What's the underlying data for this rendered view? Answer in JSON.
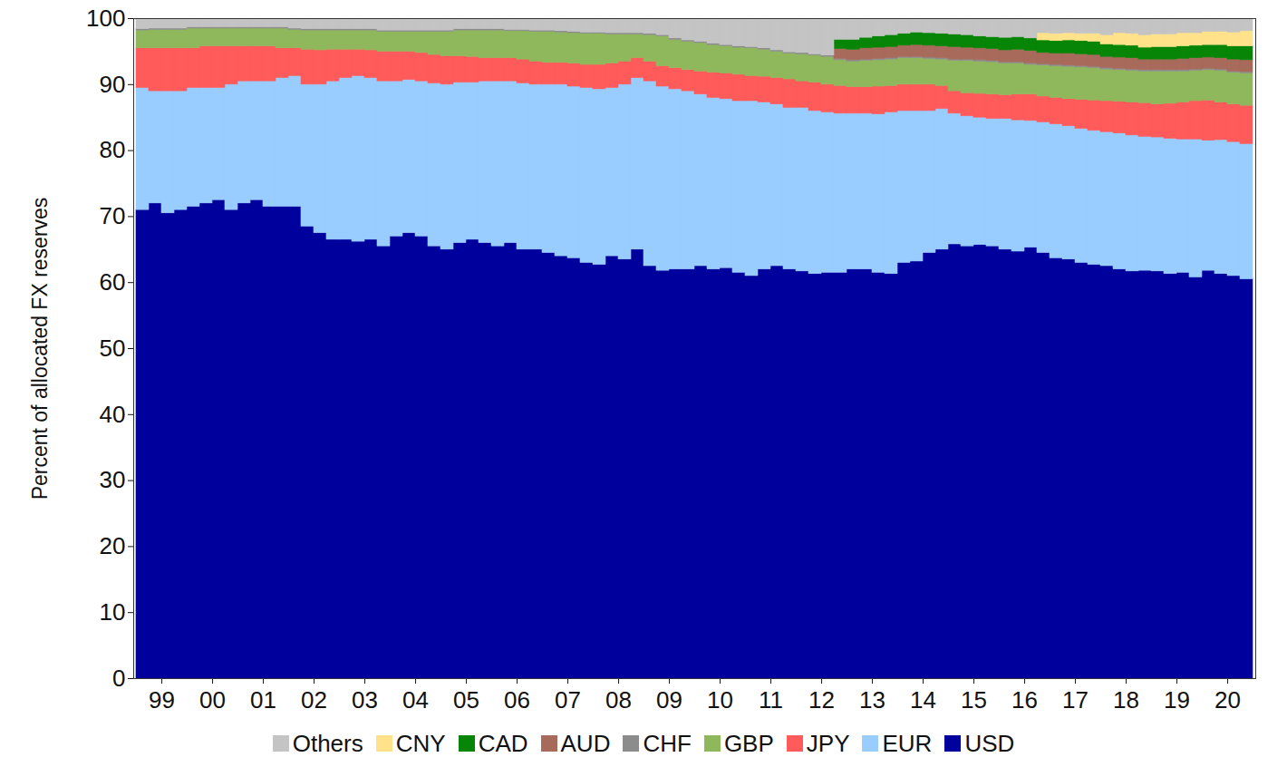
{
  "chart_data": {
    "type": "bar",
    "stacked": true,
    "ylabel": "Percent of allocated FX reserves",
    "ylim": [
      0,
      100
    ],
    "yticks": [
      0,
      10,
      20,
      30,
      40,
      50,
      60,
      70,
      80,
      90,
      100
    ],
    "grid": false,
    "legend": "bottom",
    "categories": [
      null,
      "99",
      null,
      null,
      null,
      "00",
      null,
      null,
      null,
      "01",
      null,
      null,
      null,
      "02",
      null,
      null,
      null,
      "03",
      null,
      null,
      null,
      "04",
      null,
      null,
      null,
      "05",
      null,
      null,
      null,
      "06",
      null,
      null,
      null,
      "07",
      null,
      null,
      null,
      "08",
      null,
      null,
      null,
      "09",
      null,
      null,
      null,
      "10",
      null,
      null,
      null,
      "11",
      null,
      null,
      null,
      "12",
      null,
      null,
      null,
      "13",
      null,
      null,
      null,
      "14",
      null,
      null,
      null,
      "15",
      null,
      null,
      null,
      "16",
      null,
      null,
      null,
      "17",
      null,
      null,
      null,
      "18",
      null,
      null,
      null,
      "19",
      null,
      null,
      null,
      "20",
      null,
      null
    ],
    "series": [
      {
        "name": "USD",
        "color": "#00009c",
        "values": [
          71,
          72,
          70.5,
          71,
          71.5,
          72,
          72.5,
          71,
          72,
          72.5,
          71.5,
          71.5,
          71.5,
          68.5,
          67.5,
          66.5,
          66.5,
          66.2,
          66.5,
          65.5,
          67,
          67.5,
          67,
          65.5,
          65,
          66,
          66.5,
          66,
          65.5,
          66,
          65,
          65,
          64.5,
          64,
          63.7,
          63,
          62.7,
          64,
          63.5,
          65,
          62.5,
          61.8,
          62,
          62,
          62.5,
          62,
          62.2,
          61.5,
          61,
          62,
          62.5,
          62,
          61.7,
          61.3,
          61.5,
          61.5,
          62,
          62,
          61.5,
          61.3,
          63,
          63.2,
          64.5,
          65,
          65.8,
          65.5,
          65.7,
          65.5,
          65,
          64.7,
          65.3,
          64.5,
          63.7,
          63.5,
          63,
          62.7,
          62.5,
          62,
          61.7,
          61.8,
          61.7,
          61.3,
          61.5,
          60.8,
          61.8,
          61.3,
          61,
          60.5
        ]
      },
      {
        "name": "EUR",
        "color": "#99ccff",
        "values": [
          18.5,
          17,
          18.5,
          18,
          18,
          17.5,
          17,
          19,
          18.5,
          18,
          19,
          19.5,
          19.8,
          21.5,
          22.5,
          24,
          24.5,
          25.1,
          24.5,
          25,
          23.5,
          23.2,
          23.5,
          24.7,
          25,
          24.3,
          23.8,
          24.5,
          25,
          24.5,
          25.2,
          25,
          25.5,
          26,
          26,
          26.5,
          26.6,
          25.5,
          26.5,
          26,
          28,
          27.9,
          27.3,
          27,
          26,
          26,
          25.6,
          26,
          26.5,
          25.3,
          24.5,
          24.5,
          24.8,
          24.7,
          24.3,
          24.1,
          23.6,
          23.6,
          24,
          24.5,
          23,
          22.8,
          21.5,
          21.3,
          19.8,
          19.7,
          19.3,
          19.3,
          19.8,
          19.9,
          19.2,
          19.8,
          20.3,
          20.2,
          20.3,
          20.3,
          20.3,
          20.6,
          20.6,
          20.3,
          20.3,
          20.5,
          20.2,
          20.9,
          19.7,
          20.3,
          20.3,
          20.5
        ]
      },
      {
        "name": "JPY",
        "color": "#ff5b5b",
        "values": [
          6,
          6.5,
          6.5,
          6.5,
          6,
          6.3,
          6.3,
          5.8,
          5.3,
          5.3,
          5.3,
          4.5,
          4.2,
          5.3,
          5.2,
          4.8,
          4.3,
          4,
          4.2,
          4.5,
          4.5,
          4.3,
          4.3,
          4.3,
          4.3,
          4,
          3.9,
          3.5,
          3.5,
          3.5,
          3.6,
          3.5,
          3.3,
          3.3,
          3.5,
          3.5,
          3.7,
          3.7,
          3.5,
          3,
          3,
          3.1,
          3.2,
          3.2,
          3.5,
          3.8,
          3.9,
          4,
          3.8,
          3.9,
          4,
          4.3,
          4,
          4.3,
          4.2,
          4.2,
          4,
          4,
          4.2,
          4,
          4,
          4,
          4,
          3.5,
          3.4,
          3.5,
          3.6,
          3.7,
          3.6,
          3.9,
          4,
          3.9,
          4,
          4.1,
          4.4,
          4.6,
          4.7,
          4.8,
          5,
          5.1,
          5,
          5.3,
          5.6,
          5.8,
          6.1,
          5.7,
          5.7,
          5.8
        ]
      },
      {
        "name": "GBP",
        "color": "#8fb85c",
        "values": [
          2.7,
          2.8,
          2.8,
          2.8,
          3,
          2.7,
          2.7,
          2.7,
          2.7,
          2.7,
          2.7,
          3,
          2.8,
          2.9,
          3,
          2.9,
          2.9,
          2.9,
          3,
          3,
          3,
          3,
          3.2,
          3.5,
          3.7,
          3.9,
          4,
          4.2,
          4.2,
          4.1,
          4.3,
          4.5,
          4.7,
          4.6,
          4.6,
          4.7,
          4.7,
          4.4,
          4.1,
          3.6,
          4,
          4.5,
          4.3,
          4.3,
          4.3,
          4.2,
          4.1,
          4.1,
          4.2,
          4.1,
          4,
          3.9,
          4.1,
          4.1,
          4.2,
          3.9,
          3.9,
          4,
          4,
          4,
          4,
          4,
          3.9,
          4,
          4.6,
          4.9,
          4.9,
          4.9,
          4.8,
          4.7,
          4.5,
          4.7,
          4.8,
          4.9,
          4.9,
          4.9,
          4.8,
          4.8,
          4.8,
          4.8,
          5,
          4.9,
          4.7,
          4.6,
          4.6,
          4.8,
          4.8,
          4.9
        ]
      },
      {
        "name": "CHF",
        "color": "#8c8c8c",
        "values": [
          0.2,
          0.2,
          0.2,
          0.2,
          0.2,
          0.2,
          0.2,
          0.2,
          0.2,
          0.2,
          0.2,
          0.2,
          0.2,
          0.2,
          0.2,
          0.2,
          0.2,
          0.2,
          0.2,
          0.2,
          0.2,
          0.2,
          0.2,
          0.2,
          0.2,
          0.2,
          0.2,
          0.2,
          0.2,
          0.2,
          0.2,
          0.2,
          0.2,
          0.2,
          0.2,
          0.2,
          0.2,
          0.2,
          0.2,
          0.2,
          0.2,
          0.2,
          0.2,
          0.2,
          0.2,
          0.2,
          0.2,
          0.2,
          0.2,
          0.2,
          0.2,
          0.2,
          0.2,
          0.2,
          0.2,
          0.2,
          0.2,
          0.2,
          0.2,
          0.2,
          0.2,
          0.2,
          0.2,
          0.2,
          0.2,
          0.2,
          0.2,
          0.2,
          0.2,
          0.2,
          0.2,
          0.2,
          0.2,
          0.2,
          0.2,
          0.2,
          0.2,
          0.2,
          0.2,
          0.2,
          0.2,
          0.2,
          0.2,
          0.2,
          0.2,
          0.2,
          0.2,
          0.2
        ]
      },
      {
        "name": "AUD",
        "color": "#a86a5a",
        "values": [
          null,
          null,
          null,
          null,
          null,
          null,
          null,
          null,
          null,
          null,
          null,
          null,
          null,
          null,
          null,
          null,
          null,
          null,
          null,
          null,
          null,
          null,
          null,
          null,
          null,
          null,
          null,
          null,
          null,
          null,
          null,
          null,
          null,
          null,
          null,
          null,
          null,
          null,
          null,
          null,
          null,
          null,
          null,
          null,
          null,
          null,
          null,
          null,
          null,
          null,
          null,
          null,
          null,
          null,
          null,
          1.5,
          1.6,
          1.7,
          1.7,
          1.7,
          1.7,
          1.8,
          1.8,
          1.8,
          1.9,
          1.8,
          1.8,
          1.8,
          1.8,
          1.9,
          1.9,
          1.7,
          1.7,
          1.8,
          1.8,
          1.8,
          1.7,
          1.7,
          1.7,
          1.6,
          1.6,
          1.6,
          1.7,
          1.7,
          1.7,
          1.7,
          1.8,
          1.8
        ]
      },
      {
        "name": "CAD",
        "color": "#078507",
        "values": [
          null,
          null,
          null,
          null,
          null,
          null,
          null,
          null,
          null,
          null,
          null,
          null,
          null,
          null,
          null,
          null,
          null,
          null,
          null,
          null,
          null,
          null,
          null,
          null,
          null,
          null,
          null,
          null,
          null,
          null,
          null,
          null,
          null,
          null,
          null,
          null,
          null,
          null,
          null,
          null,
          null,
          null,
          null,
          null,
          null,
          null,
          null,
          null,
          null,
          null,
          null,
          null,
          null,
          null,
          null,
          1.4,
          1.5,
          1.6,
          1.7,
          1.8,
          1.8,
          1.9,
          1.9,
          1.9,
          1.9,
          1.9,
          1.8,
          1.8,
          1.9,
          1.9,
          1.9,
          1.9,
          1.9,
          2.0,
          2.0,
          2.0,
          1.9,
          1.9,
          1.9,
          1.8,
          1.9,
          1.9,
          1.9,
          1.9,
          1.9,
          2.0,
          2.0,
          2.1
        ]
      },
      {
        "name": "CNY",
        "color": "#ffe28a",
        "values": [
          null,
          null,
          null,
          null,
          null,
          null,
          null,
          null,
          null,
          null,
          null,
          null,
          null,
          null,
          null,
          null,
          null,
          null,
          null,
          null,
          null,
          null,
          null,
          null,
          null,
          null,
          null,
          null,
          null,
          null,
          null,
          null,
          null,
          null,
          null,
          null,
          null,
          null,
          null,
          null,
          null,
          null,
          null,
          null,
          null,
          null,
          null,
          null,
          null,
          null,
          null,
          null,
          null,
          null,
          null,
          null,
          null,
          null,
          null,
          null,
          null,
          null,
          null,
          null,
          null,
          null,
          null,
          null,
          null,
          null,
          null,
          1.1,
          1.1,
          1.1,
          1.1,
          1.2,
          1.4,
          1.8,
          1.8,
          1.9,
          1.9,
          1.9,
          2.0,
          1.9,
          2.0,
          2.0,
          2.1,
          2.3
        ]
      },
      {
        "name": "Others",
        "color": "#c4c4c4",
        "values": [
          1.6,
          1.5,
          1.5,
          1.5,
          1.3,
          1.3,
          1.3,
          1.3,
          1.3,
          1.3,
          1.3,
          1.3,
          1.5,
          1.6,
          1.6,
          1.6,
          1.6,
          1.6,
          1.6,
          1.8,
          1.8,
          1.8,
          1.8,
          1.8,
          1.8,
          1.6,
          1.6,
          1.6,
          1.6,
          1.7,
          1.7,
          1.8,
          1.8,
          1.9,
          2,
          2.1,
          2.1,
          2.2,
          2.2,
          2.2,
          2.3,
          2.5,
          3,
          3.3,
          3.5,
          3.8,
          4,
          4.2,
          4.3,
          4.5,
          4.8,
          5.1,
          5.2,
          5.4,
          5.6,
          3.2,
          3.2,
          2.9,
          2.7,
          2.5,
          2.3,
          2.1,
          2.2,
          2.3,
          2.4,
          2.5,
          2.7,
          2.8,
          2.9,
          2.8,
          3.0,
          2.2,
          2.3,
          2.2,
          2.3,
          2.3,
          2.5,
          2.2,
          2.3,
          2.5,
          2.4,
          2.4,
          2.2,
          2.2,
          2.0,
          2.0,
          2.1,
          1.9
        ]
      }
    ]
  }
}
